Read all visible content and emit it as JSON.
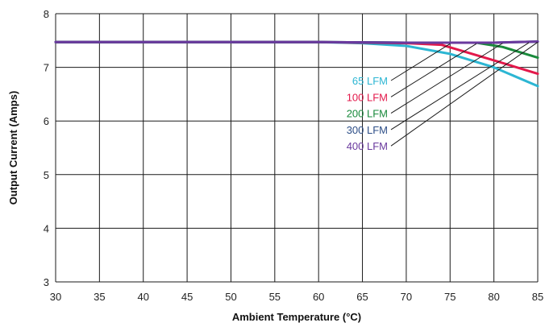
{
  "chart_data": {
    "type": "line",
    "xlabel": "Ambient Temperature (°C)",
    "ylabel": "Output Current (Amps)",
    "xlim": [
      30,
      85
    ],
    "ylim": [
      3,
      8
    ],
    "x_ticks": [
      30,
      35,
      40,
      45,
      50,
      55,
      60,
      65,
      70,
      75,
      80,
      85
    ],
    "y_ticks": [
      3,
      4,
      5,
      6,
      7,
      8
    ],
    "grid": true,
    "legend_placement": "center-right, with leader lines to curves",
    "series": [
      {
        "name": "65 LFM",
        "color": "#2cb6d3",
        "x": [
          30,
          60,
          65,
          70,
          75,
          80,
          85
        ],
        "y": [
          7.47,
          7.47,
          7.45,
          7.4,
          7.25,
          7.0,
          6.65
        ]
      },
      {
        "name": "100 LFM",
        "color": "#e3194b",
        "x": [
          30,
          60,
          65,
          70,
          74,
          80,
          85
        ],
        "y": [
          7.47,
          7.47,
          7.46,
          7.45,
          7.42,
          7.13,
          6.88
        ]
      },
      {
        "name": "200 LFM",
        "color": "#1a8a3c",
        "x": [
          30,
          60,
          70,
          78,
          81,
          85
        ],
        "y": [
          7.47,
          7.47,
          7.46,
          7.46,
          7.38,
          7.18
        ]
      },
      {
        "name": "300 LFM",
        "color": "#2e4f88",
        "x": [
          30,
          60,
          70,
          80,
          85
        ],
        "y": [
          7.47,
          7.47,
          7.46,
          7.46,
          7.48
        ]
      },
      {
        "name": "400 LFM",
        "color": "#6a3a9e",
        "x": [
          30,
          60,
          70,
          80,
          85
        ],
        "y": [
          7.47,
          7.47,
          7.46,
          7.46,
          7.48
        ]
      }
    ]
  }
}
